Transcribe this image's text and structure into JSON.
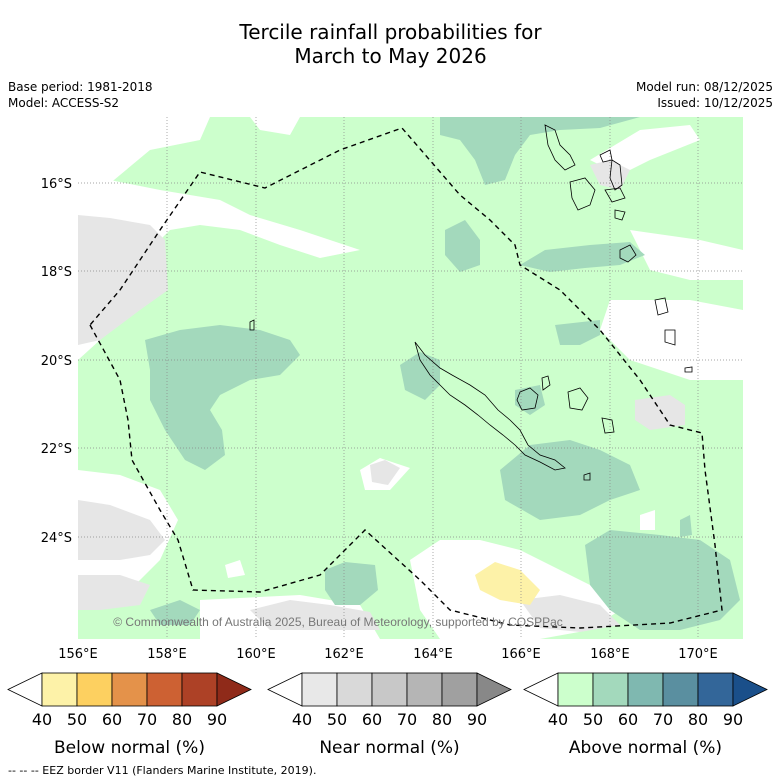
{
  "header": {
    "title_line1": "Tercile rainfall probabilities for",
    "title_line2": "March to May 2026",
    "base_period": "Base period: 1981-2018",
    "model": "Model: ACCESS-S2",
    "model_run": "Model run: 08/12/2025",
    "issued": "Issued: 10/12/2025"
  },
  "map": {
    "lat_labels": [
      "16°S",
      "18°S",
      "20°S",
      "22°S",
      "24°S"
    ],
    "lon_labels": [
      "156°E",
      "158°E",
      "160°E",
      "162°E",
      "164°E",
      "166°E",
      "168°E",
      "170°E"
    ],
    "copyright": "© Commonwealth of Australia 2025, Bureau of Meteorology, supported by COSPPac"
  },
  "colorbars": [
    {
      "name": "Below normal (%)",
      "ticks": [
        "40",
        "50",
        "60",
        "70",
        "80",
        "90"
      ],
      "colors": [
        "#ffffff",
        "#fdf2a8",
        "#fdd060",
        "#e4924a",
        "#cd6133",
        "#ad4126",
        "#8f2a19"
      ]
    },
    {
      "name": "Near normal (%)",
      "ticks": [
        "40",
        "50",
        "60",
        "70",
        "80",
        "90"
      ],
      "colors": [
        "#ffffff",
        "#e8e8e8",
        "#d9d9d9",
        "#c8c8c8",
        "#b5b5b5",
        "#a0a0a0",
        "#888888"
      ]
    },
    {
      "name": "Above normal (%)",
      "ticks": [
        "40",
        "50",
        "60",
        "70",
        "80",
        "90"
      ],
      "colors": [
        "#ffffff",
        "#ccffcc",
        "#a3d9bc",
        "#7fb8b0",
        "#5a8fa0",
        "#336699",
        "#1a4f8a"
      ]
    }
  ],
  "footer": {
    "legend_line": "--  --  -- EEZ border V11 (Flanders Marine Institute, 2019)."
  }
}
